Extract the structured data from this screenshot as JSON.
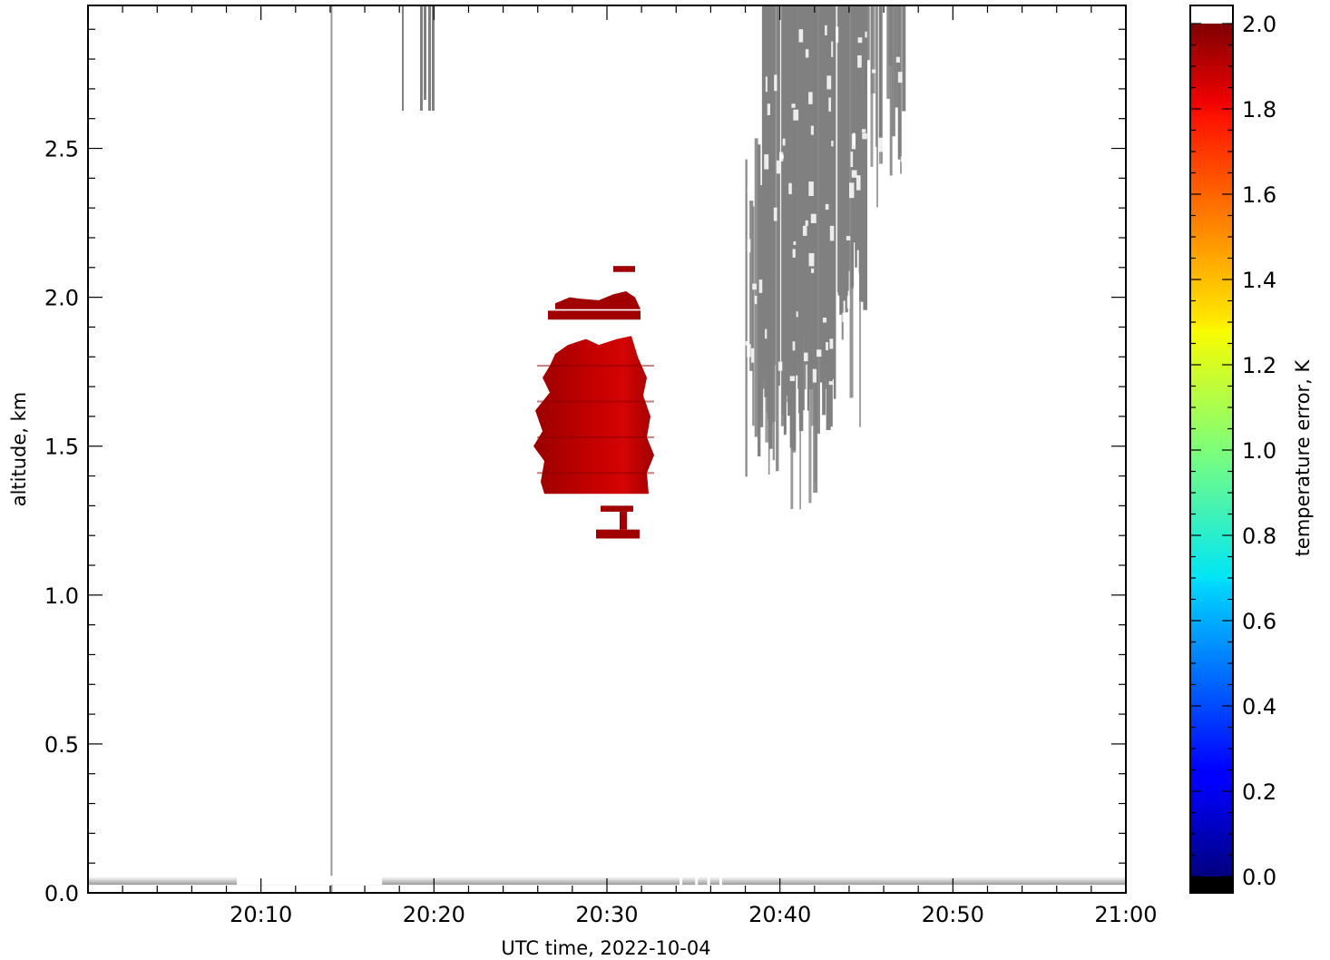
{
  "chart_data": {
    "type": "heatmap",
    "title": "",
    "xlabel": "UTC time,  2022-10-04",
    "ylabel": "altitude, km",
    "colorbar_label": "temperature error, K",
    "x_range": [
      "20:00",
      "21:00"
    ],
    "ylim": [
      0.0,
      2.98
    ],
    "x_ticks": [
      "20:10",
      "20:20",
      "20:30",
      "20:40",
      "20:50",
      "21:00"
    ],
    "y_ticks": [
      "0.0",
      "0.5",
      "1.0",
      "1.5",
      "2.0",
      "2.5"
    ],
    "colorbar_range": [
      0.0,
      2.0
    ],
    "colorbar_ticks": [
      "0.0",
      "0.2",
      "0.4",
      "0.6",
      "0.8",
      "1.0",
      "1.2",
      "1.4",
      "1.6",
      "1.8",
      "2.0"
    ],
    "colormap": "jet",
    "colors": {
      "above_range": "#ffffff",
      "below_range": "#000000",
      "masked": "#808080",
      "high_error": "#a00000"
    },
    "features": [
      {
        "value_K": 1.95,
        "time_start": "20:26",
        "time_end": "20:32",
        "alt_min_km": 1.33,
        "alt_max_km": 1.9
      },
      {
        "value_K": 1.95,
        "time_start": "20:26",
        "time_end": "20:32",
        "alt_min_km": 1.93,
        "alt_max_km": 2.02
      },
      {
        "value_K": 1.95,
        "time_start": "20:29",
        "time_end": "20:31",
        "alt_min_km": 1.18,
        "alt_max_km": 1.32
      },
      {
        "value": "masked",
        "time_start": "20:38",
        "time_end": "20:47",
        "alt_min_km": 1.2,
        "alt_max_km": 2.98
      },
      {
        "value": "masked",
        "time_start": "20:18",
        "time_end": "20:20",
        "alt_min_km": 2.62,
        "alt_max_km": 2.98
      },
      {
        "value": "masked",
        "time_start": "20:14",
        "time_end": "20:14",
        "alt_min_km": 0.0,
        "alt_max_km": 2.98
      },
      {
        "value": "masked",
        "time_start": "20:00",
        "time_end": "21:00",
        "alt_min_km": 0.0,
        "alt_max_km": 0.03
      }
    ]
  }
}
